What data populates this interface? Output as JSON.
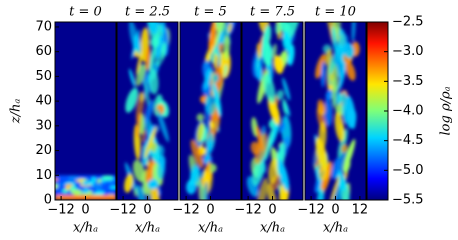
{
  "chart_data": {
    "type": "heatmap",
    "panels": [
      {
        "title": "t = 0",
        "xlabel": "x/hₐ",
        "xticks": [
          {
            "value": -12,
            "label": "−12"
          },
          0
        ]
      },
      {
        "title": "t = 2.5",
        "xlabel": "x/hₐ",
        "xticks": [
          {
            "value": -12,
            "label": "−12"
          },
          0
        ]
      },
      {
        "title": "t = 5",
        "xlabel": "x/hₐ",
        "xticks": [
          {
            "value": -12,
            "label": "−12"
          },
          0
        ]
      },
      {
        "title": "t = 7.5",
        "xlabel": "x/hₐ",
        "xticks": [
          {
            "value": -12,
            "label": "−12"
          },
          0
        ]
      },
      {
        "title": "t = 10",
        "xlabel": "x/hₐ",
        "xticks": [
          {
            "value": -12,
            "label": "−12"
          },
          0,
          12
        ]
      }
    ],
    "xlim": [
      -15,
      15
    ],
    "ylabel": "z/hₐ",
    "ylim": [
      0,
      72
    ],
    "yticks": [
      0,
      10,
      20,
      30,
      40,
      50,
      60,
      70
    ],
    "colorbar": {
      "label": "log ρ/ρₐ",
      "lim": [
        -5.5,
        -2.5
      ],
      "ticks": [
        {
          "value": -5.5,
          "label": "−5.5"
        },
        {
          "value": -5.0,
          "label": "−5.0"
        },
        {
          "value": -4.5,
          "label": "−4.5"
        },
        {
          "value": -4.0,
          "label": "−4.0"
        },
        {
          "value": -3.5,
          "label": "−3.5"
        },
        {
          "value": -3.0,
          "label": "−3.0"
        },
        {
          "value": -2.5,
          "label": "−2.5"
        }
      ]
    }
  }
}
